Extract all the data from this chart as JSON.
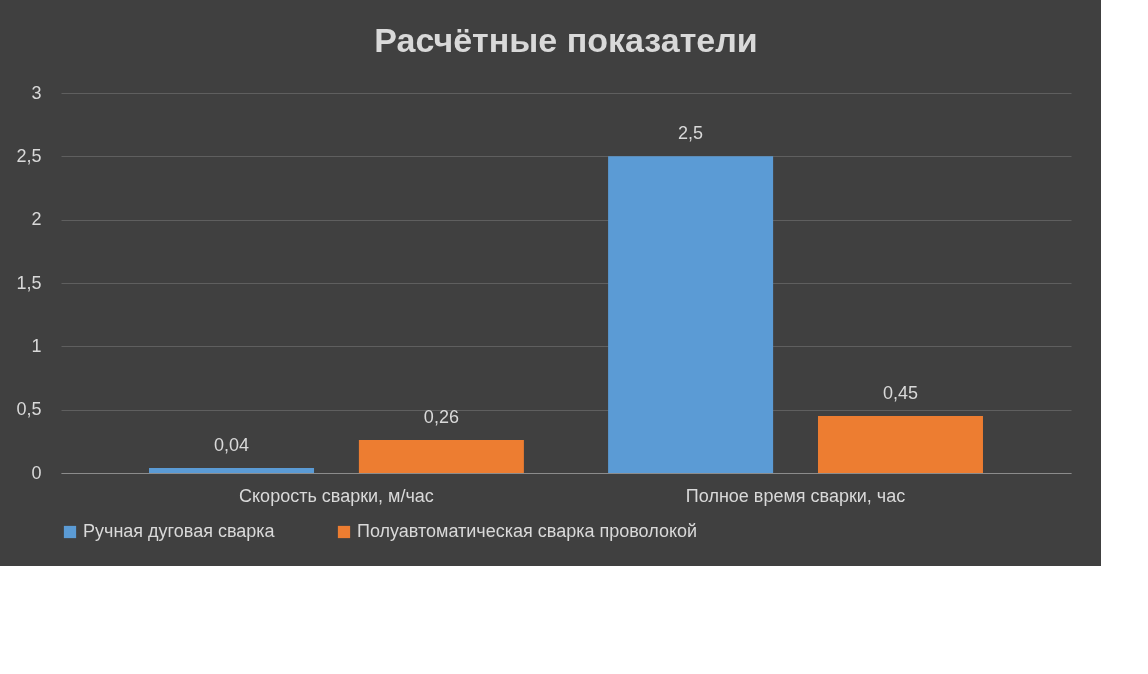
{
  "chart_data": {
    "type": "bar",
    "title": "Расчётные показатели",
    "categories": [
      "Скорость сварки, м/час",
      "Полное время сварки, час"
    ],
    "series": [
      {
        "name": "Ручная дуговая сварка",
        "color": "#5b9bd5",
        "values": [
          0.04,
          2.5
        ],
        "value_labels": [
          "0,04",
          "2,5"
        ]
      },
      {
        "name": "Полуавтоматическая сварка проволокой",
        "color": "#ed7d31",
        "values": [
          0.26,
          0.45
        ],
        "value_labels": [
          "0,26",
          "0,45"
        ]
      }
    ],
    "ylim": [
      0,
      3
    ],
    "yticks": [
      0,
      {
        "value": 0.5,
        "label": "0,5"
      },
      1,
      {
        "value": 1.5,
        "label": "1,5"
      },
      2,
      {
        "value": 2.5,
        "label": "2,5"
      },
      3
    ],
    "grid": "y",
    "legend": "bottom"
  }
}
